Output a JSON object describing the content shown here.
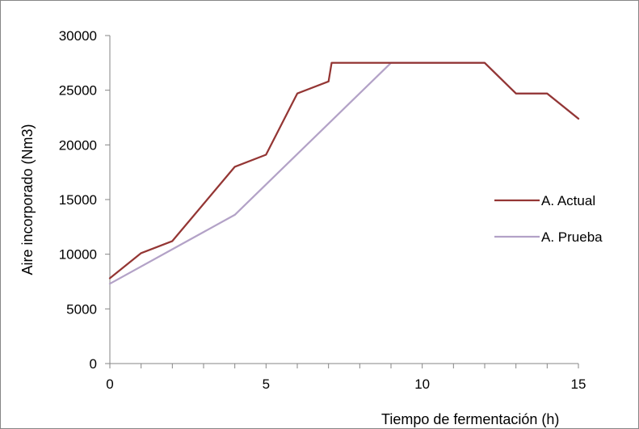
{
  "chart_data": {
    "type": "line",
    "title": "",
    "xlabel": "Tiempo de fermentación (h)",
    "ylabel": "Aire incorporado (Nm3)",
    "xlim": [
      0,
      15
    ],
    "ylim": [
      0,
      30000
    ],
    "x_ticks": [
      0,
      5,
      10,
      15
    ],
    "x_tick_labels": [
      "0",
      "5",
      "10",
      "15"
    ],
    "y_ticks": [
      0,
      5000,
      10000,
      15000,
      20000,
      25000,
      30000
    ],
    "y_tick_labels": [
      "0",
      "5000",
      "10000",
      "15000",
      "20000",
      "25000",
      "30000"
    ],
    "x_minor_step": 1,
    "grid": false,
    "legend_position": "right",
    "series": [
      {
        "name": "A. Actual",
        "color": "#943634",
        "points": [
          [
            0,
            7800
          ],
          [
            1,
            10100
          ],
          [
            2,
            11200
          ],
          [
            3,
            14600
          ],
          [
            4,
            18000
          ],
          [
            5,
            19100
          ],
          [
            6,
            24700
          ],
          [
            7,
            25800
          ],
          [
            7.1,
            27500
          ],
          [
            8,
            27500
          ],
          [
            9,
            27500
          ],
          [
            10,
            27500
          ],
          [
            11,
            27500
          ],
          [
            12,
            27500
          ],
          [
            13,
            24700
          ],
          [
            14,
            24700
          ],
          [
            15,
            22400
          ]
        ]
      },
      {
        "name": "A. Prueba",
        "color": "#b3a2c7",
        "points": [
          [
            0,
            7300
          ],
          [
            4,
            13600
          ],
          [
            9,
            27500
          ],
          [
            10,
            27500
          ],
          [
            11,
            27500
          ],
          [
            12,
            27500
          ],
          [
            13,
            24700
          ],
          [
            14,
            24700
          ],
          [
            15,
            22400
          ]
        ]
      }
    ]
  }
}
